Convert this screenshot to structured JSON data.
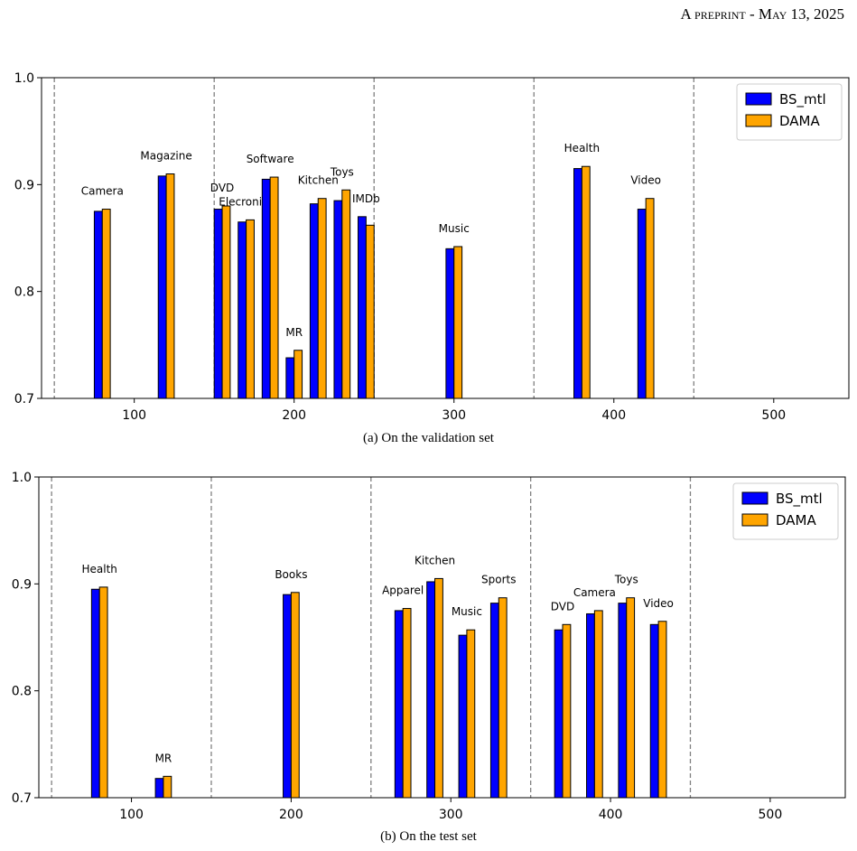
{
  "header": {
    "text": "A preprint - May 13, 2025"
  },
  "chart_data": [
    {
      "type": "bar",
      "caption": "(a) On the validation set",
      "xlim": [
        42,
        547
      ],
      "ylim": [
        0.7,
        1.0
      ],
      "xticks": [
        100,
        200,
        300,
        400,
        500
      ],
      "yticks": [
        0.7,
        0.8,
        0.9,
        1.0
      ],
      "ytick_labels": [
        "0.7",
        "0.8",
        "0.9",
        "1.0"
      ],
      "dividers": [
        50,
        150,
        250,
        350,
        450
      ],
      "legend": {
        "position": "top-right",
        "entries": [
          "BS_mtl",
          "DAMA"
        ]
      },
      "colors": {
        "BS_mtl": "#0000ff",
        "DAMA": "#ffa500"
      },
      "groups": [
        {
          "label": "Camera",
          "x": 80,
          "bs_mtl": 0.875,
          "dama": 0.877
        },
        {
          "label": "Magazine",
          "x": 120,
          "bs_mtl": 0.908,
          "dama": 0.91
        },
        {
          "label": "DVD",
          "x": 155,
          "bs_mtl": 0.877,
          "dama": 0.88
        },
        {
          "label": "Elecronics",
          "x": 170,
          "bs_mtl": 0.865,
          "dama": 0.867
        },
        {
          "label": "Software",
          "x": 185,
          "bs_mtl": 0.905,
          "dama": 0.907
        },
        {
          "label": "MR",
          "x": 200,
          "bs_mtl": 0.738,
          "dama": 0.745
        },
        {
          "label": "Kitchen",
          "x": 215,
          "bs_mtl": 0.882,
          "dama": 0.887
        },
        {
          "label": "Toys",
          "x": 230,
          "bs_mtl": 0.885,
          "dama": 0.895
        },
        {
          "label": "IMDb",
          "x": 245,
          "bs_mtl": 0.87,
          "dama": 0.862
        },
        {
          "label": "Music",
          "x": 300,
          "bs_mtl": 0.84,
          "dama": 0.842
        },
        {
          "label": "Health",
          "x": 380,
          "bs_mtl": 0.915,
          "dama": 0.917
        },
        {
          "label": "Video",
          "x": 420,
          "bs_mtl": 0.877,
          "dama": 0.887
        }
      ]
    },
    {
      "type": "bar",
      "caption": "(b) On the test set",
      "xlim": [
        42,
        547
      ],
      "ylim": [
        0.7,
        1.0
      ],
      "xticks": [
        100,
        200,
        300,
        400,
        500
      ],
      "yticks": [
        0.7,
        0.8,
        0.9,
        1.0
      ],
      "ytick_labels": [
        "0.7",
        "0.8",
        "0.9",
        "1.0"
      ],
      "dividers": [
        50,
        150,
        250,
        350,
        450
      ],
      "legend": {
        "position": "top-right",
        "entries": [
          "BS_mtl",
          "DAMA"
        ]
      },
      "colors": {
        "BS_mtl": "#0000ff",
        "DAMA": "#ffa500"
      },
      "groups": [
        {
          "label": "Health",
          "x": 80,
          "bs_mtl": 0.895,
          "dama": 0.897
        },
        {
          "label": "MR",
          "x": 120,
          "bs_mtl": 0.718,
          "dama": 0.72
        },
        {
          "label": "Books",
          "x": 200,
          "bs_mtl": 0.89,
          "dama": 0.892
        },
        {
          "label": "Apparel",
          "x": 270,
          "bs_mtl": 0.875,
          "dama": 0.877
        },
        {
          "label": "Kitchen",
          "x": 290,
          "bs_mtl": 0.902,
          "dama": 0.905
        },
        {
          "label": "Music",
          "x": 310,
          "bs_mtl": 0.852,
          "dama": 0.857
        },
        {
          "label": "Sports",
          "x": 330,
          "bs_mtl": 0.882,
          "dama": 0.887
        },
        {
          "label": "DVD",
          "x": 370,
          "bs_mtl": 0.857,
          "dama": 0.862
        },
        {
          "label": "Camera",
          "x": 390,
          "bs_mtl": 0.872,
          "dama": 0.875
        },
        {
          "label": "Toys",
          "x": 410,
          "bs_mtl": 0.882,
          "dama": 0.887
        },
        {
          "label": "Video",
          "x": 430,
          "bs_mtl": 0.862,
          "dama": 0.865
        }
      ]
    }
  ]
}
